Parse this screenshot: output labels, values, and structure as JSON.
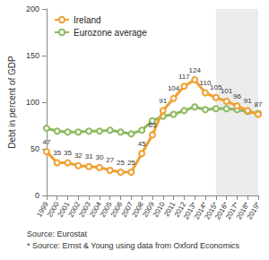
{
  "chart_data": {
    "type": "line",
    "y_label": "Debt in percent of GDP",
    "categories": [
      "1999",
      "2000",
      "2001",
      "2002",
      "2003",
      "2004",
      "2005",
      "2006",
      "2007",
      "2008",
      "2009",
      "2010",
      "2011",
      "2012",
      "2013*",
      "2014*",
      "2015*",
      "2016*",
      "2017*",
      "2018*",
      "2019*"
    ],
    "series": [
      {
        "name": "Ireland",
        "color": "#f0a030",
        "marker": "circle",
        "line_style": "solid",
        "data_labels": true,
        "values": [
          47,
          35,
          35,
          32,
          31,
          30,
          27,
          25,
          25,
          45,
          65,
          91,
          104,
          117,
          124,
          110,
          105,
          101,
          96,
          91,
          87
        ]
      },
      {
        "name": "Eurozone average",
        "color": "#8db860",
        "marker": "circle",
        "line_style": "solid",
        "data_labels": false,
        "values": [
          72,
          69,
          68,
          68,
          69,
          69,
          70,
          68,
          66,
          70,
          80,
          85,
          87,
          91,
          95,
          92,
          93,
          93,
          92,
          90,
          88
        ]
      }
    ],
    "shaded": {
      "from": "2015*",
      "to": "2019*"
    },
    "notes": [
      "Source: Eurostat",
      "* Source: Ernst & Young using data from Oxford Economics"
    ],
    "ylim": [
      0,
      200
    ],
    "yticks": [
      0,
      50,
      100,
      150,
      200
    ],
    "grid": false,
    "legend": "upper left"
  }
}
